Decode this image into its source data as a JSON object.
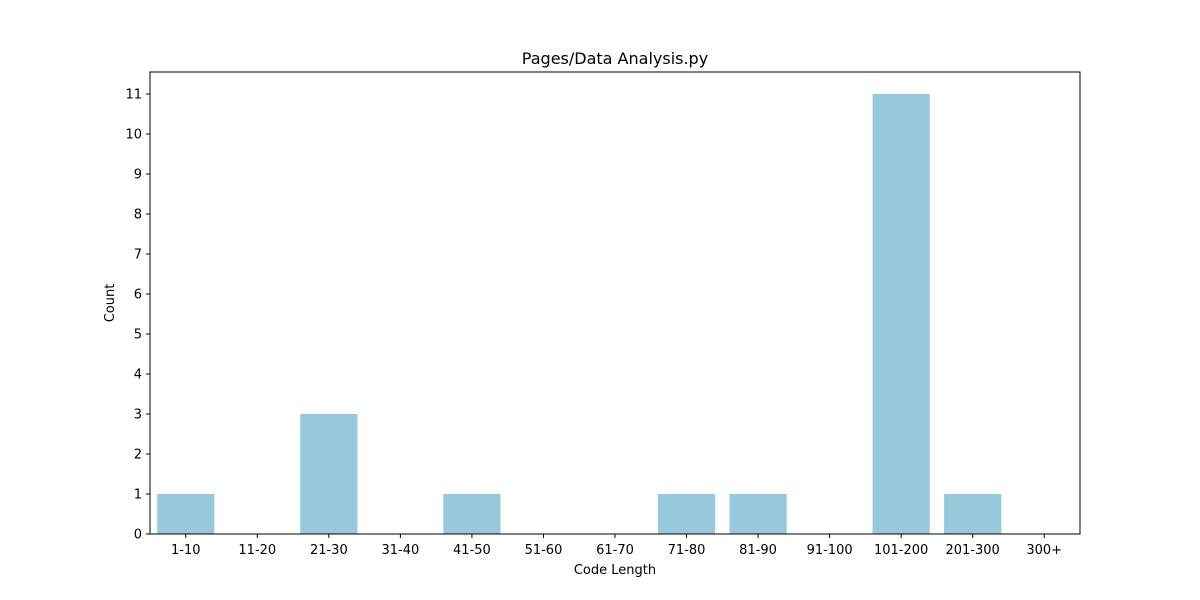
{
  "chart_data": {
    "type": "bar",
    "title": "Pages/Data Analysis.py",
    "xlabel": "Code Length",
    "ylabel": "Count",
    "categories": [
      "1-10",
      "11-20",
      "21-30",
      "31-40",
      "41-50",
      "51-60",
      "61-70",
      "71-80",
      "81-90",
      "91-100",
      "101-200",
      "201-300",
      "300+"
    ],
    "values": [
      1,
      0,
      3,
      0,
      1,
      0,
      0,
      1,
      1,
      0,
      11,
      1,
      0
    ],
    "ylim": [
      0,
      11.55
    ],
    "yticks": [
      0,
      1,
      2,
      3,
      4,
      5,
      6,
      7,
      8,
      9,
      10,
      11
    ],
    "bar_color": "#96c9dc",
    "grid": false,
    "legend": "none"
  }
}
